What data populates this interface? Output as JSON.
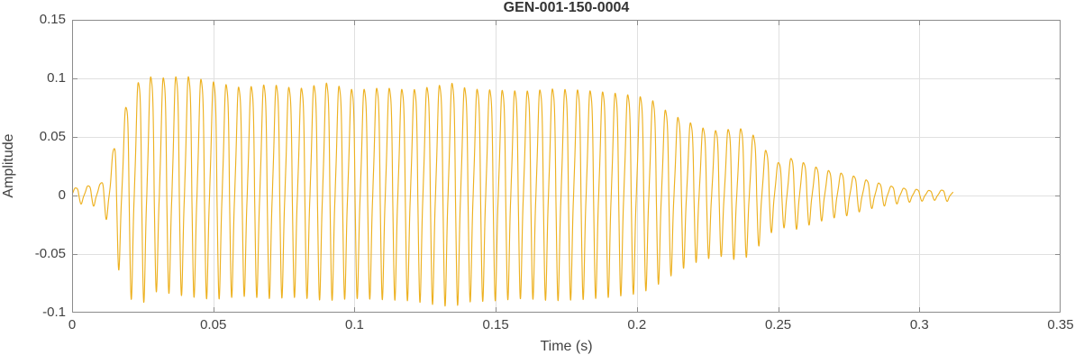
{
  "chart_data": {
    "type": "line",
    "title": "GEN-001-150-0004",
    "xlabel": "Time (s)",
    "ylabel": "Amplitude",
    "xlim": [
      0,
      0.35
    ],
    "ylim": [
      -0.1,
      0.15
    ],
    "xticks": [
      0,
      0.05,
      0.1,
      0.15,
      0.2,
      0.25,
      0.3,
      0.35
    ],
    "xtick_labels": [
      "0",
      "0.05",
      "0.1",
      "0.15",
      "0.2",
      "0.25",
      "0.3",
      "0.35"
    ],
    "yticks": [
      -0.1,
      -0.05,
      0,
      0.05,
      0.1,
      0.15
    ],
    "ytick_labels": [
      "-0.1",
      "-0.05",
      "0",
      "0.05",
      "0.1",
      "0.15"
    ],
    "grid": true,
    "legend": "none",
    "style": {
      "grid_color": "#e0e0e0",
      "axis_color": "#8c8c8c",
      "label_color": "#424242",
      "background": "#ffffff"
    },
    "series": [
      {
        "name": "waveform",
        "color": "#EDB120",
        "line_width": 1.15,
        "t_start": 0,
        "t_end": 0.312,
        "carrier_hz": 225,
        "harmonics": [
          {
            "mult": 1,
            "amp": 1.0,
            "phase": 0
          },
          {
            "mult": 2,
            "amp": 0.3,
            "phase": 2.2
          },
          {
            "mult": 3,
            "amp": 0.12,
            "phase": 4.1
          }
        ],
        "envelope_t": [
          0,
          0.005,
          0.01,
          0.013,
          0.016,
          0.02,
          0.025,
          0.03,
          0.04,
          0.05,
          0.06,
          0.07,
          0.08,
          0.09,
          0.1,
          0.11,
          0.12,
          0.13,
          0.135,
          0.14,
          0.15,
          0.16,
          0.17,
          0.18,
          0.19,
          0.2,
          0.205,
          0.21,
          0.215,
          0.22,
          0.225,
          0.23,
          0.235,
          0.24,
          0.245,
          0.25,
          0.255,
          0.26,
          0.265,
          0.27,
          0.275,
          0.28,
          0.285,
          0.29,
          0.295,
          0.3,
          0.305,
          0.31,
          0.312
        ],
        "envelope_upper": [
          0.006,
          0.008,
          0.01,
          0.02,
          0.055,
          0.082,
          0.103,
          0.1,
          0.102,
          0.097,
          0.092,
          0.095,
          0.091,
          0.096,
          0.09,
          0.092,
          0.09,
          0.094,
          0.096,
          0.091,
          0.09,
          0.089,
          0.091,
          0.09,
          0.088,
          0.085,
          0.082,
          0.073,
          0.066,
          0.061,
          0.056,
          0.055,
          0.058,
          0.055,
          0.04,
          0.028,
          0.032,
          0.027,
          0.023,
          0.02,
          0.018,
          0.014,
          0.011,
          0.008,
          0.006,
          0.005,
          0.004,
          0.005,
          0.003
        ],
        "envelope_lower": [
          -0.006,
          -0.008,
          -0.01,
          -0.025,
          -0.06,
          -0.088,
          -0.092,
          -0.082,
          -0.086,
          -0.089,
          -0.086,
          -0.088,
          -0.087,
          -0.09,
          -0.088,
          -0.089,
          -0.09,
          -0.094,
          -0.095,
          -0.091,
          -0.09,
          -0.088,
          -0.09,
          -0.089,
          -0.087,
          -0.084,
          -0.08,
          -0.072,
          -0.064,
          -0.058,
          -0.054,
          -0.052,
          -0.055,
          -0.052,
          -0.038,
          -0.026,
          -0.03,
          -0.026,
          -0.022,
          -0.019,
          -0.017,
          -0.013,
          -0.01,
          -0.008,
          -0.006,
          -0.005,
          -0.004,
          -0.005,
          -0.003
        ]
      }
    ]
  }
}
